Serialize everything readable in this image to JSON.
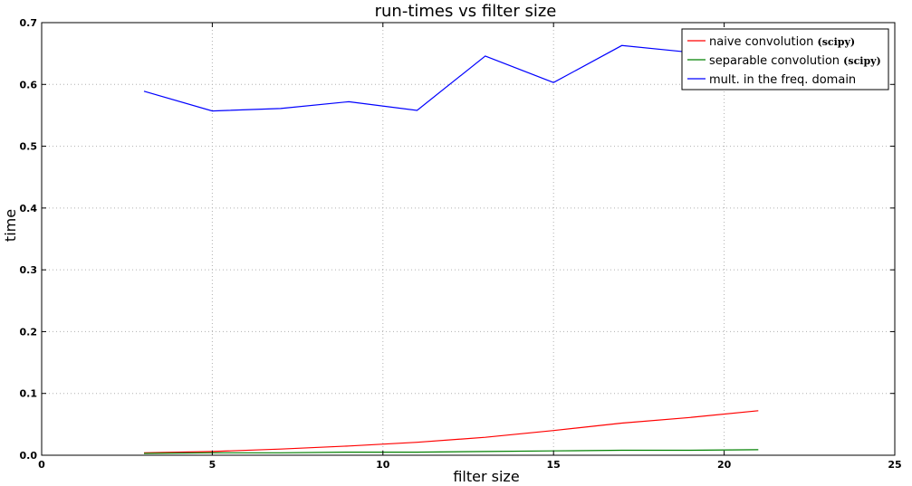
{
  "chart_data": {
    "type": "line",
    "title": "run-times vs filter size",
    "xlabel": "filter size",
    "ylabel": "time",
    "xlim": [
      0,
      25
    ],
    "ylim": [
      0,
      0.7
    ],
    "xticks": [
      0,
      5,
      10,
      15,
      20,
      25
    ],
    "yticks": [
      0.0,
      0.1,
      0.2,
      0.3,
      0.4,
      0.5,
      0.6,
      0.7
    ],
    "xtick_labels": [
      "0",
      "5",
      "10",
      "15",
      "20",
      "25"
    ],
    "ytick_labels": [
      "0.0",
      "0.1",
      "0.2",
      "0.3",
      "0.4",
      "0.5",
      "0.6",
      "0.7"
    ],
    "grid": true,
    "legend_position": "top-right",
    "series": [
      {
        "name": "naive convolution",
        "name_suffix": "(scipy)",
        "color": "#ff0000",
        "x": [
          3,
          5,
          7,
          9,
          11,
          13,
          15,
          17,
          19,
          21
        ],
        "y": [
          0.004,
          0.006,
          0.01,
          0.015,
          0.021,
          0.029,
          0.04,
          0.052,
          0.061,
          0.072
        ]
      },
      {
        "name": "separable convolution",
        "name_suffix": "(scipy)",
        "color": "#008000",
        "x": [
          3,
          5,
          7,
          9,
          11,
          13,
          15,
          17,
          19,
          21
        ],
        "y": [
          0.003,
          0.004,
          0.004,
          0.005,
          0.005,
          0.006,
          0.007,
          0.008,
          0.008,
          0.009
        ]
      },
      {
        "name": "mult. in the freq. domain",
        "name_suffix": "",
        "color": "#0000ff",
        "x": [
          3,
          5,
          7,
          9,
          11,
          13,
          15,
          17,
          19,
          21
        ],
        "y": [
          0.589,
          0.557,
          0.561,
          0.572,
          0.558,
          0.646,
          0.603,
          0.663,
          0.652,
          0.648
        ]
      }
    ]
  }
}
